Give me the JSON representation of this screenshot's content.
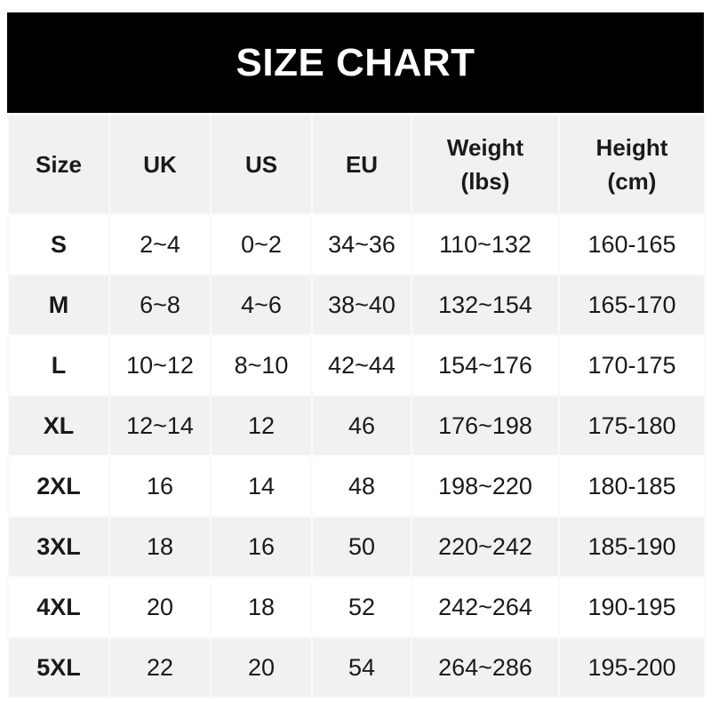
{
  "chart_data": {
    "type": "table",
    "title": "SIZE CHART",
    "columns": [
      "Size",
      "UK",
      "US",
      "EU",
      "Weight\n(lbs)",
      "Height\n(cm)"
    ],
    "rows": [
      [
        "S",
        "2~4",
        "0~2",
        "34~36",
        "110~132",
        "160-165"
      ],
      [
        "M",
        "6~8",
        "4~6",
        "38~40",
        "132~154",
        "165-170"
      ],
      [
        "L",
        "10~12",
        "8~10",
        "42~44",
        "154~176",
        "170-175"
      ],
      [
        "XL",
        "12~14",
        "12",
        "46",
        "176~198",
        "175-180"
      ],
      [
        "2XL",
        "16",
        "14",
        "48",
        "198~220",
        "180-185"
      ],
      [
        "3XL",
        "18",
        "16",
        "50",
        "220~242",
        "185-190"
      ],
      [
        "4XL",
        "20",
        "18",
        "52",
        "242~264",
        "190-195"
      ],
      [
        "5XL",
        "22",
        "20",
        "54",
        "264~286",
        "195-200"
      ]
    ]
  },
  "colors": {
    "title_bg": "#000000",
    "title_text": "#ffffff",
    "header_bg": "#f1f1f1",
    "alt_row_bg": "#f1f1f1"
  }
}
